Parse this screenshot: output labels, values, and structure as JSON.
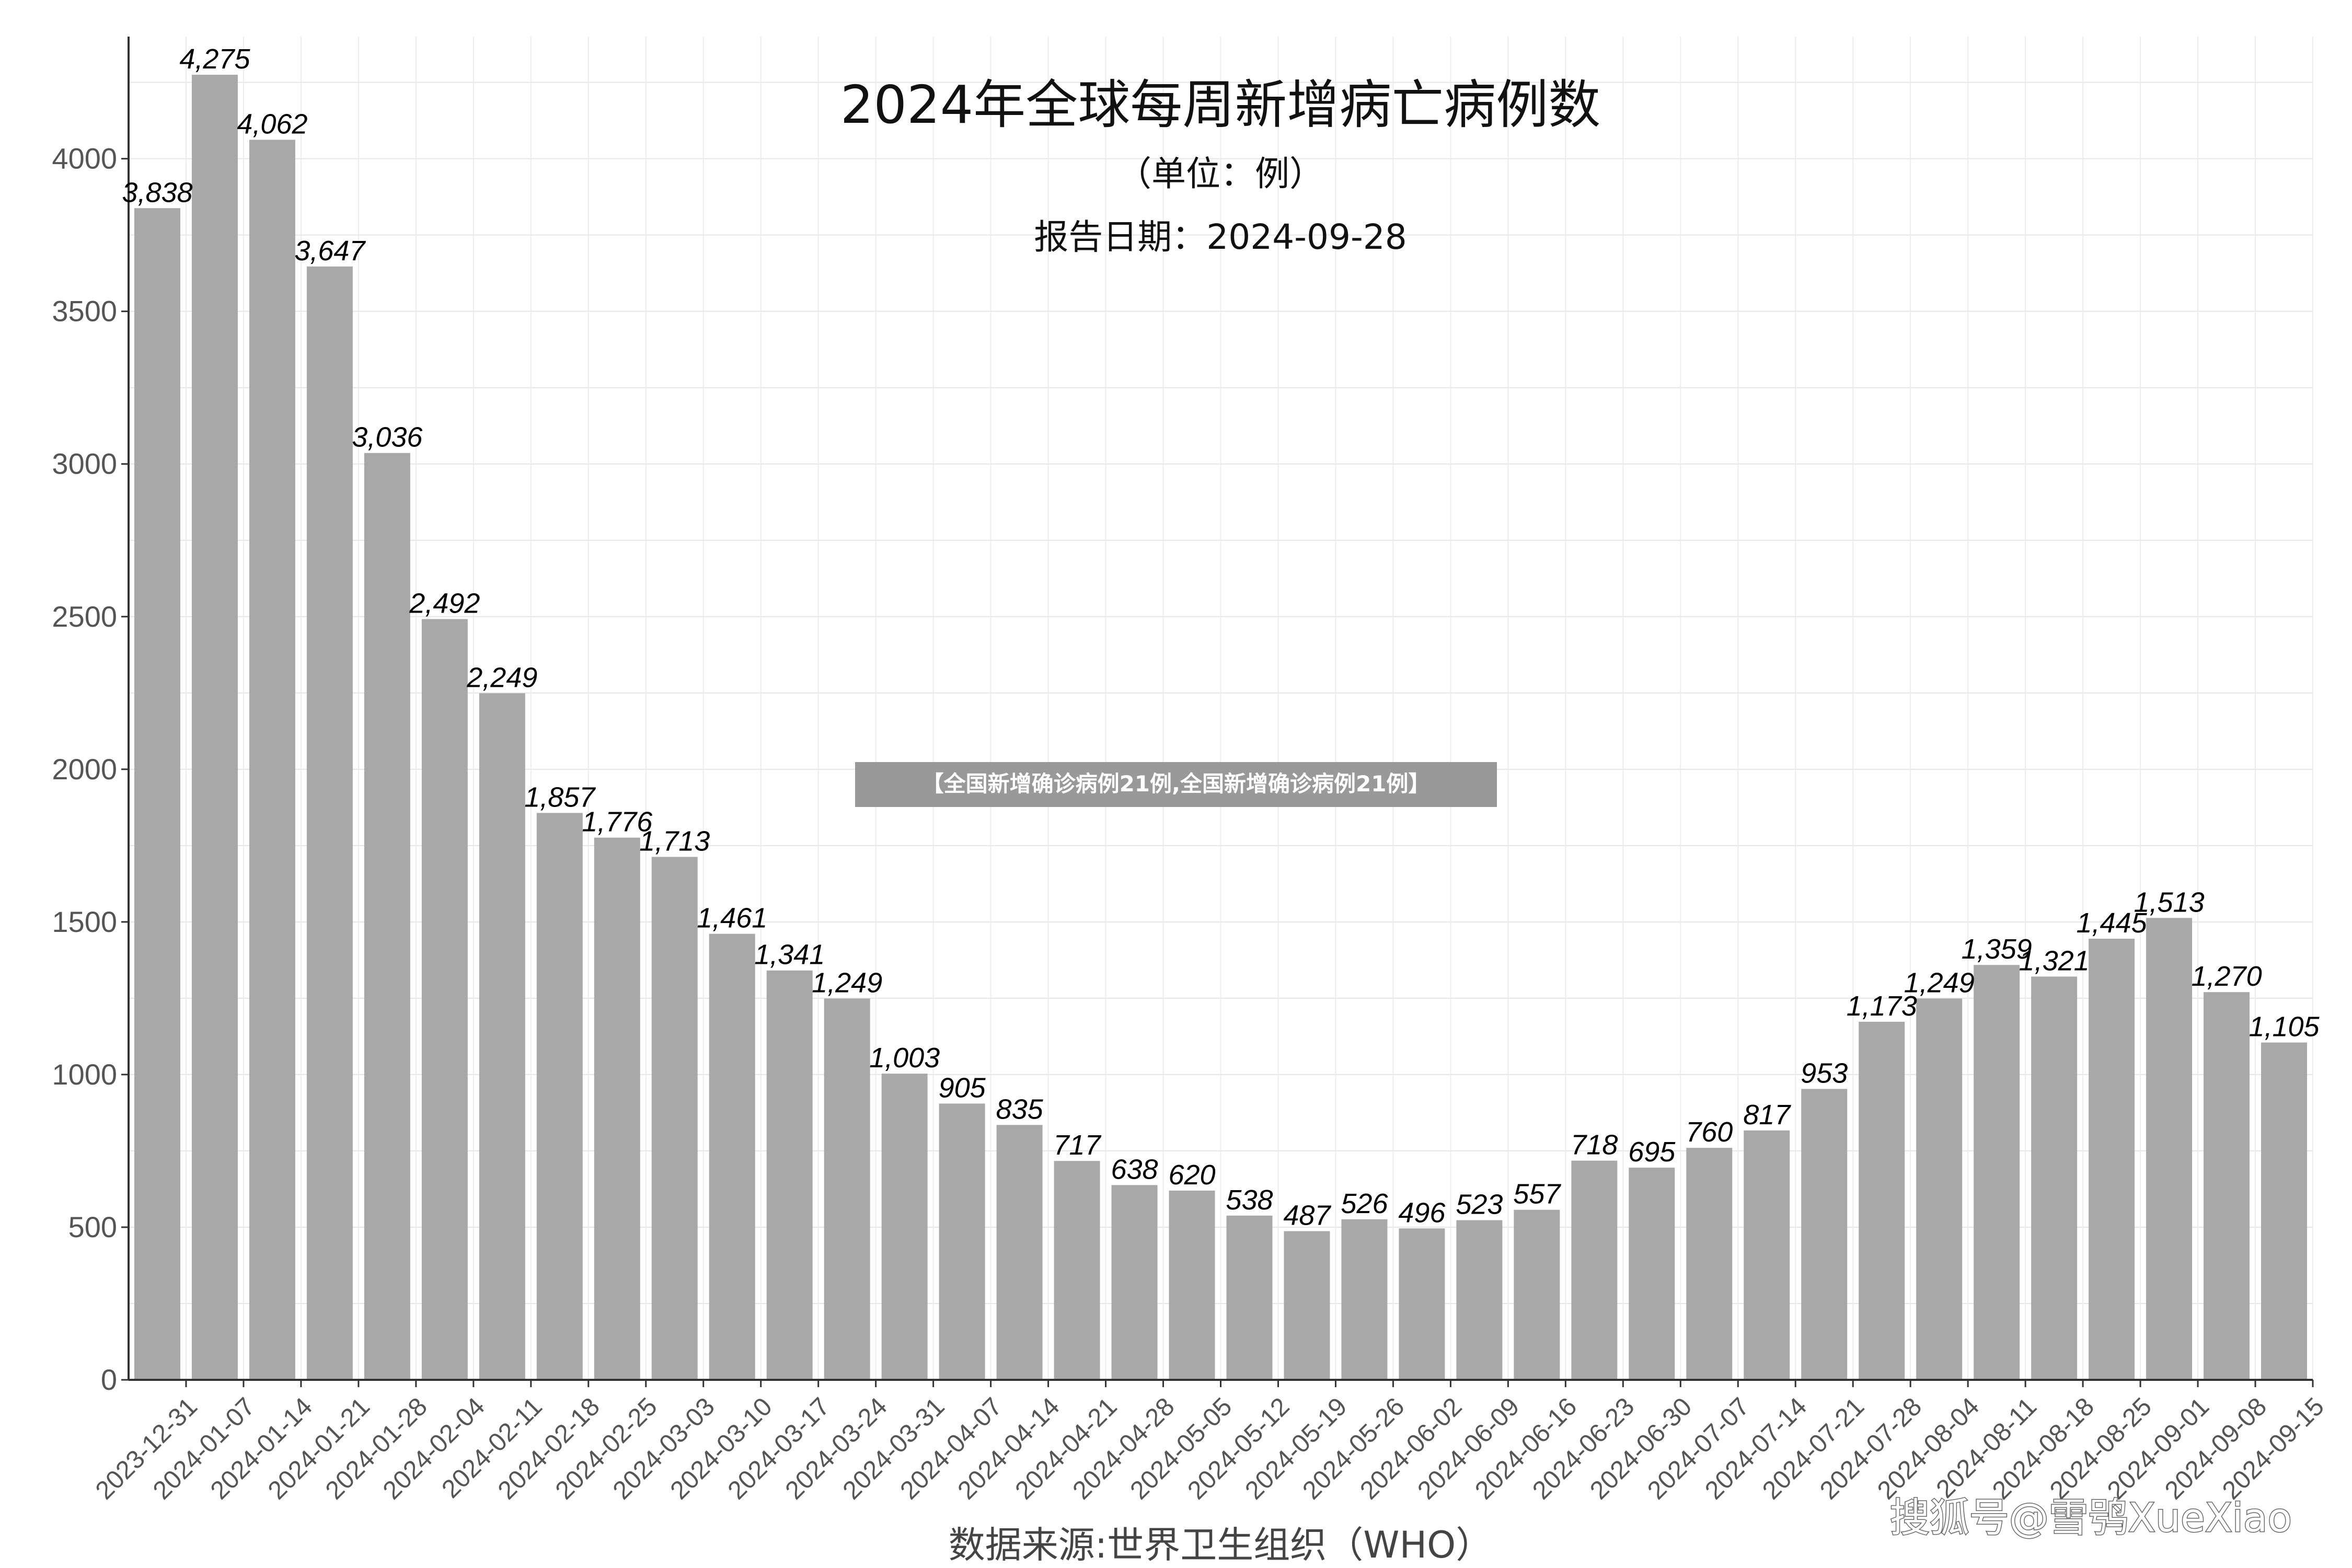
{
  "chart_data": {
    "type": "bar",
    "title": "2024年全球每周新增病亡病例数",
    "subtitle": "（单位：例）",
    "report_date": "报告日期：2024-09-28",
    "xlabel": "数据来源:世界卫生组织（WHO）",
    "ylabel": "",
    "ylim": [
      0,
      4400
    ],
    "yticks": [
      0,
      500,
      1000,
      1500,
      2000,
      2500,
      3000,
      3500,
      4000
    ],
    "grid": true,
    "bar_color": "#a8a8a8",
    "categories": [
      "2023-12-31",
      "2024-01-07",
      "2024-01-14",
      "2024-01-21",
      "2024-01-28",
      "2024-02-04",
      "2024-02-11",
      "2024-02-18",
      "2024-02-25",
      "2024-03-03",
      "2024-03-10",
      "2024-03-17",
      "2024-03-24",
      "2024-03-31",
      "2024-04-07",
      "2024-04-14",
      "2024-04-21",
      "2024-04-28",
      "2024-05-05",
      "2024-05-12",
      "2024-05-19",
      "2024-05-26",
      "2024-06-02",
      "2024-06-09",
      "2024-06-16",
      "2024-06-23",
      "2024-06-30",
      "2024-07-07",
      "2024-07-14",
      "2024-07-21",
      "2024-07-28",
      "2024-08-04",
      "2024-08-11",
      "2024-08-18",
      "2024-08-25",
      "2024-09-01",
      "2024-09-08",
      "2024-09-15"
    ],
    "values": [
      3838,
      4275,
      4062,
      3647,
      3036,
      2492,
      2249,
      1857,
      1776,
      1713,
      1461,
      1341,
      1249,
      1003,
      905,
      835,
      717,
      638,
      620,
      538,
      487,
      526,
      496,
      523,
      557,
      718,
      695,
      760,
      817,
      953,
      1173,
      1249,
      1359,
      1321,
      1445,
      1513,
      1270,
      1105
    ],
    "value_labels": [
      "3,838",
      "4,275",
      "4,062",
      "3,647",
      "3,036",
      "2,492",
      "2,249",
      "1,857",
      "1,776",
      "1,713",
      "1,461",
      "1,341",
      "1,249",
      "1,003",
      "905",
      "835",
      "717",
      "638",
      "620",
      "538",
      "487",
      "526",
      "496",
      "523",
      "557",
      "718",
      "695",
      "760",
      "817",
      "953",
      "1,173",
      "1,249",
      "1,359",
      "1,321",
      "1,445",
      "1,513",
      "1,270",
      "1,105"
    ]
  },
  "banner": {
    "text": "【全国新增确诊病例21例,全国新增确诊病例21例】",
    "color": "#999999"
  },
  "watermark": "搜狐号@雪鸮XueXiao"
}
